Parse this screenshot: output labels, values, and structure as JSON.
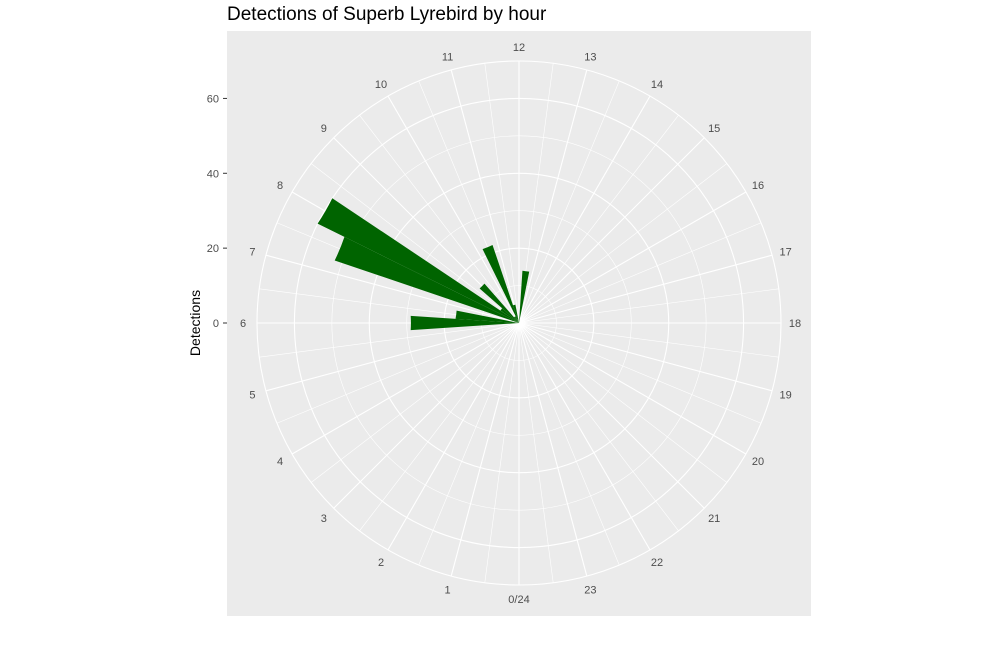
{
  "chart_data": {
    "type": "bar",
    "coord": "polar",
    "title": "Detections of Superb Lyrebird by hour",
    "xlabel": "",
    "ylabel": "Detections",
    "ylim": [
      0,
      70
    ],
    "ytick_values": [
      0,
      20,
      40,
      60
    ],
    "ytick_labels": [
      "0",
      "20",
      "40",
      "60"
    ],
    "categories": [
      "0/24",
      "1",
      "2",
      "3",
      "4",
      "5",
      "6",
      "7",
      "8",
      "9",
      "10",
      "11",
      "12",
      "13",
      "14",
      "15",
      "16",
      "17",
      "18",
      "19",
      "20",
      "21",
      "22",
      "23"
    ],
    "series": [
      {
        "bars": [
          {
            "hour": 6.0,
            "value": 29
          },
          {
            "hour": 6.5,
            "value": 17
          },
          {
            "hour": 7.5,
            "value": 52
          },
          {
            "hour": 8.0,
            "value": 60
          },
          {
            "hour": 8.5,
            "value": 6
          },
          {
            "hour": 9.0,
            "value": 14
          },
          {
            "hour": 9.5,
            "value": 2
          },
          {
            "hour": 10.0,
            "value": 2
          },
          {
            "hour": 10.5,
            "value": 22
          },
          {
            "hour": 11.0,
            "value": 5
          },
          {
            "hour": 12.5,
            "value": 14
          }
        ]
      }
    ],
    "colors": {
      "bar": "#006400",
      "panel": "#ebebeb",
      "grid": "#ffffff",
      "tick_text": "#4d4d4d"
    },
    "grid": true,
    "legend": "none"
  }
}
